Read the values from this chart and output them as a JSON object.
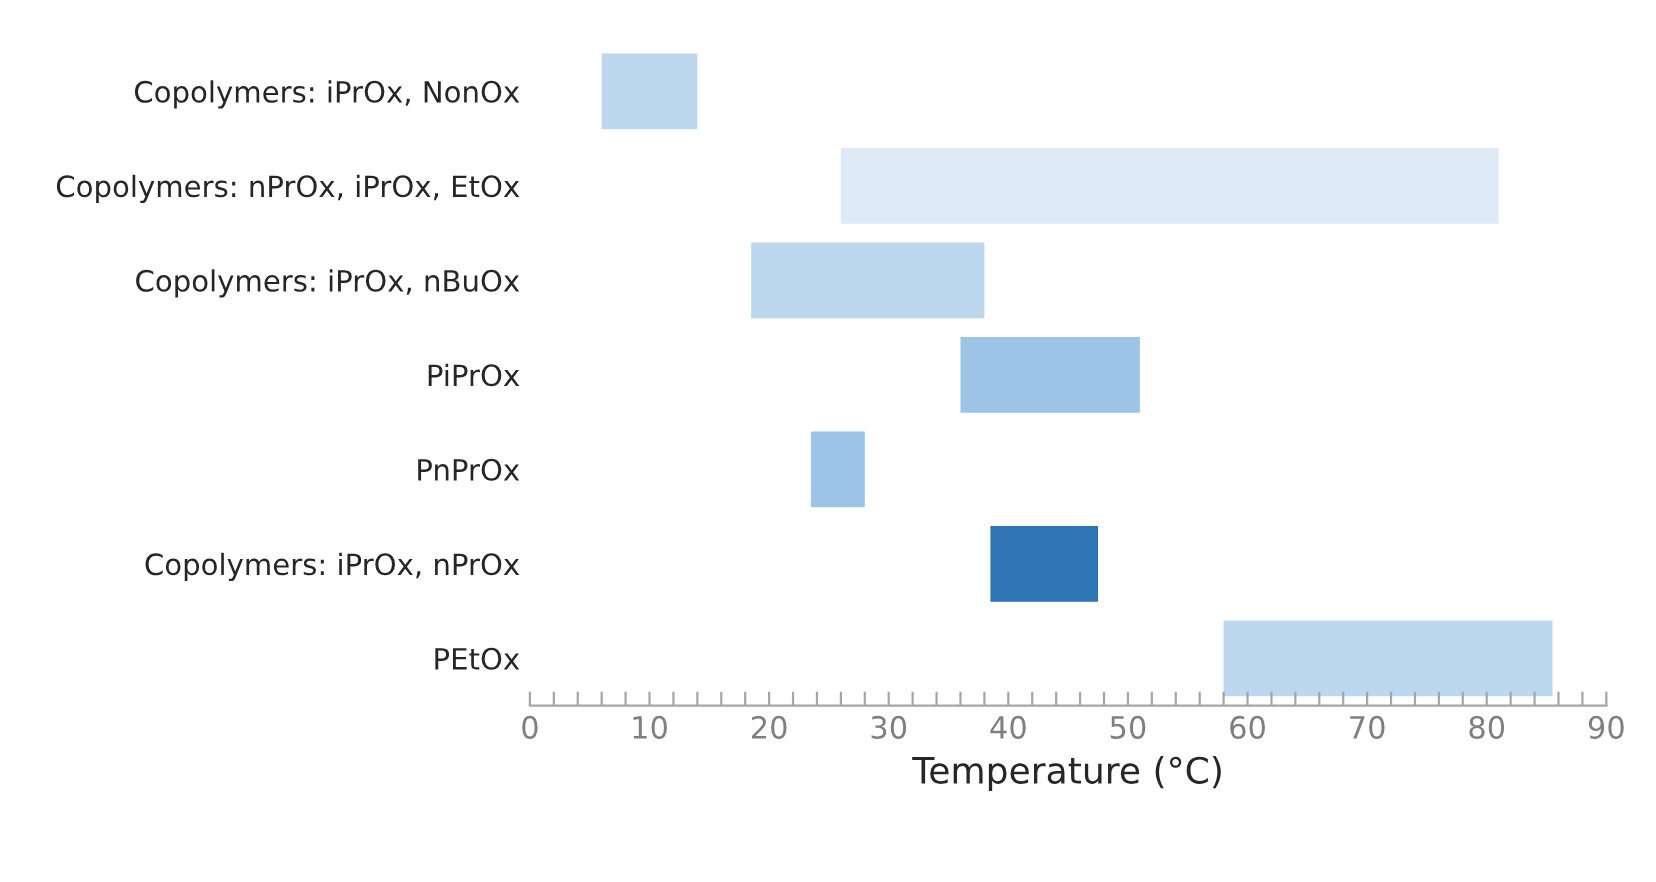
{
  "chart_data": {
    "type": "bar",
    "orientation": "horizontal",
    "xlabel": "Temperature (°C)",
    "categories": [
      "Copolymers: iPrOx, NonOx",
      "Copolymers: nPrOx, iPrOx, EtOx",
      "Copolymers: iPrOx, nBuOx",
      "PiPrOx",
      "PnPrOx",
      "Copolymers: iPrOx, nPrOx",
      "PEtOx"
    ],
    "base": [
      6,
      26,
      18.5,
      36,
      23.5,
      38.5,
      58
    ],
    "values": [
      8,
      55,
      19.5,
      15,
      4.5,
      9,
      27.5
    ],
    "colors": [
      "#bdd7ee",
      "#deebf7",
      "#bdd7ee",
      "#9dc3e6",
      "#9dc3e6",
      "#2e75b6",
      "#bdd7ee"
    ],
    "xlim": [
      0,
      90
    ],
    "xticks": [
      0,
      {
        "value": 2,
        "label": null
      },
      {
        "value": 4,
        "label": null
      },
      {
        "value": 6,
        "label": null
      },
      {
        "value": 8,
        "label": null
      },
      10,
      {
        "value": 12,
        "label": null
      },
      {
        "value": 14,
        "label": null
      },
      {
        "value": 16,
        "label": null
      },
      {
        "value": 18,
        "label": null
      },
      20,
      {
        "value": 22,
        "label": null
      },
      {
        "value": 24,
        "label": null
      },
      {
        "value": 26,
        "label": null
      },
      {
        "value": 28,
        "label": null
      },
      30,
      {
        "value": 32,
        "label": null
      },
      {
        "value": 34,
        "label": null
      },
      {
        "value": 36,
        "label": null
      },
      {
        "value": 38,
        "label": null
      },
      40,
      {
        "value": 42,
        "label": null
      },
      {
        "value": 44,
        "label": null
      },
      {
        "value": 46,
        "label": null
      },
      {
        "value": 48,
        "label": null
      },
      50,
      {
        "value": 52,
        "label": null
      },
      {
        "value": 54,
        "label": null
      },
      {
        "value": 56,
        "label": null
      },
      {
        "value": 58,
        "label": null
      },
      60,
      {
        "value": 62,
        "label": null
      },
      {
        "value": 64,
        "label": null
      },
      {
        "value": 66,
        "label": null
      },
      {
        "value": 68,
        "label": null
      },
      70,
      {
        "value": 72,
        "label": null
      },
      {
        "value": 74,
        "label": null
      },
      {
        "value": 76,
        "label": null
      },
      {
        "value": 78,
        "label": null
      },
      80,
      {
        "value": 82,
        "label": null
      },
      {
        "value": 84,
        "label": null
      },
      {
        "value": 86,
        "label": null
      },
      {
        "value": 88,
        "label": null
      },
      90
    ],
    "grid": false
  }
}
